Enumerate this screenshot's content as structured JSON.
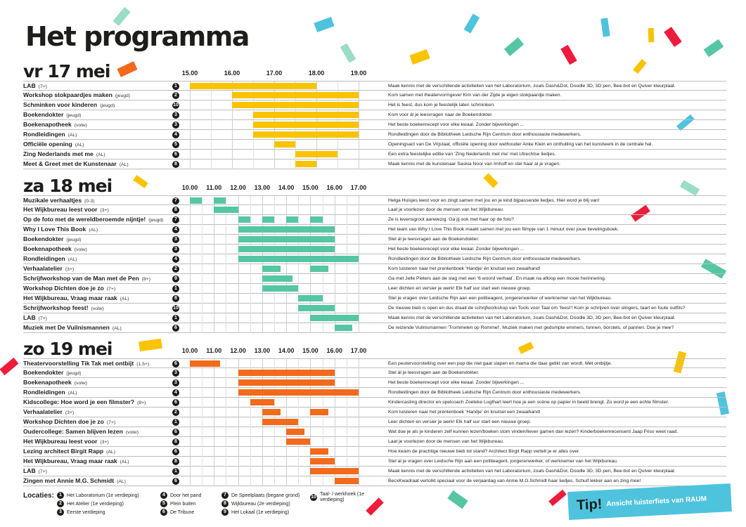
{
  "title": "Het programma",
  "colors": {
    "vr": "#f9c300",
    "za": "#55c6a4",
    "zo": "#f26a1b"
  },
  "days": [
    {
      "id": "vr",
      "name": "vr 17 mei",
      "start": 15,
      "end": 19,
      "ticks": [
        "15.00",
        "16.00",
        "17.00",
        "18.00",
        "19.00"
      ],
      "color": "#f9c300",
      "rows": [
        {
          "name": "LAB",
          "tag": "(7+)",
          "loc": "1",
          "bars": [
            [
              15,
              18
            ]
          ],
          "desc": "Maak kennis met de verschillende activiteiten van het Laboratorium, zoals Dash&Dot, Doodle 3D, 3D pen, Bee-bot en Quiver kleurplaat."
        },
        {
          "name": "Workshop stokpaardjes maken",
          "tag": "(jeugd)",
          "loc": "2",
          "bars": [
            [
              16,
              19
            ]
          ],
          "desc": "Kom samen met theatervormgever Kim van der Zijde je eigen stokpaardje maken."
        },
        {
          "name": "Schminken voor kinderen",
          "tag": "(jeugd)",
          "loc": "10",
          "bars": [
            [
              16,
              19
            ]
          ],
          "desc": "Het is feest, dus kom je feestelijk laten schminken."
        },
        {
          "name": "Boekendokter",
          "tag": "(jeugd)",
          "loc": "3",
          "bars": [
            [
              16.5,
              19
            ]
          ],
          "desc": "Kom voor ál je leesvragen naar de Boekendokter."
        },
        {
          "name": "Boekenapotheek",
          "tag": "(volw)",
          "loc": "3",
          "bars": [
            [
              16.5,
              19
            ]
          ],
          "desc": "Het beste boekenrecept voor elke kwaal. Zonder bijwerkingen ..."
        },
        {
          "name": "Rondleidingen",
          "tag": "(AL)",
          "loc": "4",
          "bars": [
            [
              16.5,
              19
            ]
          ],
          "desc": "Rondleidingen door de Bibliotheek Leidsche Rijn Centrum door enthousiaste medewerkers."
        },
        {
          "name": "Officiële opening",
          "tag": "(AL)",
          "loc": "5",
          "bars": [
            [
              17,
              17.5
            ]
          ],
          "desc": "Openingsact van De Vrijstaat, officiële opening door wethouder Anke Klein en onthulling van het kunstwerk in de centrale hal."
        },
        {
          "name": "Zing Nederlands met me",
          "tag": "(AL)",
          "loc": "6",
          "bars": [
            [
              17.5,
              18.5
            ]
          ],
          "desc": "Een extra feestelijke editie van ‘Zing Nederlands met me’ met Utrechtse liedjes."
        },
        {
          "name": "Meet & Greet met de Kunstenaar",
          "tag": "(AL)",
          "loc": "8",
          "bars": [
            [
              17.5,
              18
            ]
          ],
          "desc": "Maak kennis met de kunstenaar Saskia Noor van Imhoff en stel haar al je vragen."
        }
      ]
    },
    {
      "id": "za",
      "name": "za 18 mei",
      "start": 10,
      "end": 17,
      "ticks": [
        "10.00",
        "11.00",
        "12.00",
        "13.00",
        "14.00",
        "15.00",
        "16.00",
        "17.00"
      ],
      "color": "#55c6a4",
      "rows": [
        {
          "name": "Muzikale verhaaltjes",
          "tag": "(0-3)",
          "loc": "7",
          "bars": [
            [
              10,
              10.5
            ],
            [
              11,
              11.5
            ]
          ],
          "desc": "Helga Huisjes leest voor en zingt samen met jou en je kind bijpassende liedjes. Hier word je blij van!"
        },
        {
          "name": "Het Wijkbureau leest voor",
          "tag": "(3+)",
          "loc": "8",
          "bars": [
            [
              11,
              12
            ]
          ],
          "desc": "Laat je voorlezen door de mensen van het Wijkbureau."
        },
        {
          "name": "Op de foto met de wereldberoemde nijntje!",
          "tag": "(jeugd)",
          "loc": "7",
          "bars": [
            [
              12,
              12.5
            ],
            [
              13,
              13.5
            ],
            [
              14,
              14.5
            ],
            [
              15,
              15.5
            ]
          ],
          "desc": "Ze is levensgroot aanwezig. Ga jij ook met haar op de foto?"
        },
        {
          "name": "Why I Love This Book",
          "tag": "(AL)",
          "loc": "4",
          "bars": [
            [
              12,
              16
            ]
          ],
          "desc": "Het team van Why I Love This Book maakt samen met jou een filmpje van 1 minuut over jouw lievelingsboek."
        },
        {
          "name": "Boekendokter",
          "tag": "(jeugd)",
          "loc": "3",
          "bars": [
            [
              12,
              16
            ]
          ],
          "desc": "Stel ál je leesvragen aan de Boekendokter."
        },
        {
          "name": "Boekenapotheek",
          "tag": "(volw)",
          "loc": "3",
          "bars": [
            [
              12,
              16
            ]
          ],
          "desc": "Het beste boekenrecept voor elke kwaal. Zonder bijwerkingen ..."
        },
        {
          "name": "Rondleidingen",
          "tag": "(AL)",
          "loc": "4",
          "bars": [
            [
              12,
              17
            ]
          ],
          "desc": "Rondleidingen door de Bibliotheek Leidsche Rijn Centrum door enthousiaste medewerkers."
        },
        {
          "name": "Verhaalatelier",
          "tag": "(3+)",
          "loc": "2",
          "bars": [
            [
              13,
              13.75
            ],
            [
              15,
              15.75
            ]
          ],
          "desc": "Kom luisteren naar het prentenboek ‘Handje’ én knutsel een zwaaihand!"
        },
        {
          "name": "Schrijfworkshop van de Man met de Pen",
          "tag": "(8+)",
          "loc": "9",
          "bars": [
            [
              13,
              14.25
            ]
          ],
          "desc": "Ga met Jelle Pieters aan de slag met een ‘6 woord verhaal’. En maak na afloop een mooie herinnering."
        },
        {
          "name": "Workshop Dichten doe je zo",
          "tag": "(7+)",
          "loc": "1",
          "bars": [
            [
              13,
              14.5
            ]
          ],
          "desc": "Leer dichten en versier je werk! Elk half uur start een nieuwe groep."
        },
        {
          "name": "Het Wijkbureau, Vraag maar raak",
          "tag": "(AL)",
          "loc": "8",
          "bars": [
            [
              14.5,
              15.5
            ]
          ],
          "desc": "Stel je vragen over Leidsche Rijn aan een politieagent, jongerenwerker of werknemer van het Wijkbureau."
        },
        {
          "name": "Schrijfworkshop feest!",
          "tag": "(volw)",
          "loc": "10",
          "bars": [
            [
              14.5,
              16
            ]
          ],
          "desc": "De nieuwe bieb is open en dus draait de schrijfworkshop van Tools voor Taal om ‘feest’! Kom je schrijven over slingers, taart en foute outfits?"
        },
        {
          "name": "LAB",
          "tag": "(7+)",
          "loc": "1",
          "bars": [
            [
              15,
              17
            ]
          ],
          "desc": "Maak kennis met de verschillende activiteiten van het Laboratorium, zoals Dash&Dot, Doodle 3D, 3D pen, Bee-bot en Quiver kleurplaat."
        },
        {
          "name": "Muziek met De Vuilnismannen",
          "tag": "(AL)",
          "loc": "6",
          "bars": [
            [
              16,
              16.75
            ]
          ],
          "desc": "De reizende Vuilnismannen ‘Trommelen op Rommel’. Muziek maken met gedumpte emmers, tonnen, borstels, of pannen. Doe je mee?"
        }
      ]
    },
    {
      "id": "zo",
      "name": "zo 19 mei",
      "start": 10,
      "end": 17,
      "ticks": [
        "10.00",
        "11.00",
        "12.00",
        "13.00",
        "14.00",
        "15.00",
        "16.00",
        "17.00"
      ],
      "color": "#f26a1b",
      "rows": [
        {
          "name": "Theatervoorstelling Tik Tak met ontbijt",
          "tag": "(1,5+)",
          "loc": "6",
          "bars": [
            [
              10,
              11.25
            ]
          ],
          "desc": "Een peutervoorstelling over een pop die niet gaat slapen en mama die daar getikt van wordt. Mét ontbijtje."
        },
        {
          "name": "Boekendokter",
          "tag": "(jeugd)",
          "loc": "3",
          "bars": [
            [
              12,
              16
            ]
          ],
          "desc": "Stel ál je leesvragen aan de Boekendokter."
        },
        {
          "name": "Boekenapotheek",
          "tag": "(volw)",
          "loc": "3",
          "bars": [
            [
              12,
              16
            ]
          ],
          "desc": "Het beste boekenrecept voor elke kwaal. Zonder bijwerkingen ..."
        },
        {
          "name": "Rondleidingen",
          "tag": "(AL)",
          "loc": "4",
          "bars": [
            [
              12,
              17
            ]
          ],
          "desc": "Rondleidingen door de Bibliotheek Leidsche Rijn Centrum door enthousiaste medewerkers."
        },
        {
          "name": "Kidscollege: Hoe word je een filmster?",
          "tag": "(8+)",
          "loc": "6",
          "bars": [
            [
              12.5,
              13.5
            ]
          ],
          "desc": "Kindercasting director en spelcoach Zoeteke Lugthart leert hoe je een scène op papier in beeld brengt. Zo word je een echte filmster."
        },
        {
          "name": "Verhaalatelier",
          "tag": "(3+)",
          "loc": "2",
          "bars": [
            [
              13,
              13.75
            ],
            [
              15,
              15.75
            ]
          ],
          "desc": "Kom luisteren naar het prentenboek ‘Handje’ én knutsel een zwaaihand!"
        },
        {
          "name": "Workshop Dichten doe je zo",
          "tag": "(7+)",
          "loc": "1",
          "bars": [
            [
              13,
              14.5
            ]
          ],
          "desc": "Leer dichten en versier je werk! Elk half uur start een nieuwe groep."
        },
        {
          "name": "Oudercollege: Samen blijven lezen",
          "tag": "(volw)",
          "loc": "6",
          "bars": [
            [
              14,
              14.75
            ]
          ],
          "desc": "Wat doe je als je kinderen zelf kunnen lezen/boeken stom vinden/liever gamen dan lezen? Kinderboekenrecensent Jaap Friso weet raad."
        },
        {
          "name": "Het Wijkbureau leest voor",
          "tag": "(3+)",
          "loc": "8",
          "bars": [
            [
              14,
              15
            ]
          ],
          "desc": "Laat je voorlezen door de mensen van het Wijkbureau."
        },
        {
          "name": "Lezing architect Birgit Rapp",
          "tag": "(AL)",
          "loc": "6",
          "bars": [
            [
              15,
              15.75
            ]
          ],
          "desc": "Hoe kwam de prachtige nieuwe bieb tot stand? Architect Birgit Rapp vertelt je er alles over."
        },
        {
          "name": "Het Wijkbureau, Vraag maar raak",
          "tag": "(AL)",
          "loc": "8",
          "bars": [
            [
              15,
              16
            ]
          ],
          "desc": "Stel al je vragen over Leidsche Rijn aan een politieagent, jongerenwerker, of werknemer van het Wijkbureau."
        },
        {
          "name": "LAB",
          "tag": "(7+)",
          "loc": "1",
          "bars": [
            [
              15,
              17
            ]
          ],
          "desc": "Maak kennis met de verschillende activiteiten van het Laboratorium, zoals Dash&Dot, Doodle 3D, 3D pen, Bee-bot en Quiver kleurplaat."
        },
        {
          "name": "Zingen met Annie M.G. Schmidt",
          "tag": "(AL)",
          "loc": "6",
          "bars": [
            [
              16,
              17
            ]
          ],
          "desc": "BecxKwadraat vertolkt speciaal voor de verjaardag van Annie M.G.Schmidt haar liedjes. Schuif lekker aan en zing mee!"
        }
      ]
    }
  ],
  "legend": {
    "label": "Locaties:",
    "items": [
      {
        "n": "1",
        "text": "Het Laboratorium (1e verdieping)"
      },
      {
        "n": "2",
        "text": "Het Atelier (1e verdieping)"
      },
      {
        "n": "3",
        "text": "Eerste verdieping"
      },
      {
        "n": "4",
        "text": "Door het pand"
      },
      {
        "n": "5",
        "text": "Plein buiten"
      },
      {
        "n": "6",
        "text": "De Tribune"
      },
      {
        "n": "7",
        "text": "De Speelplaats (begane grond)"
      },
      {
        "n": "8",
        "text": "Wijkbureau (2e verdieping)"
      },
      {
        "n": "9",
        "text": "Het Lokaal (1e verdieping)"
      },
      {
        "n": "10",
        "text": "Taal- / werkhoek (1e verdieping)"
      }
    ]
  },
  "tip": {
    "label": "Tip!",
    "text": "Ansicht luisterfiets van RAUM"
  }
}
